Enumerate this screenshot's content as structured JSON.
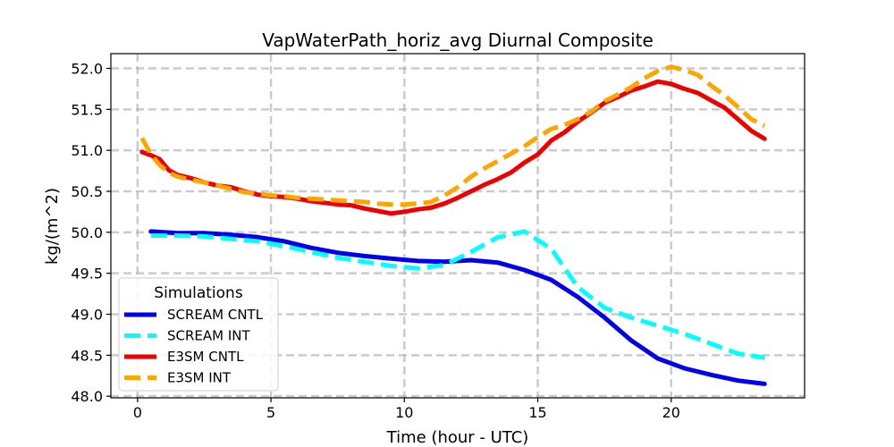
{
  "chart_data": {
    "type": "line",
    "title": "VapWaterPath_horiz_avg Diurnal Composite",
    "xlabel": "Time (hour - UTC)",
    "ylabel": "kg/(m^2)",
    "xlim": [
      -1,
      25
    ],
    "ylim": [
      47.98,
      52.18
    ],
    "xticks": [
      0,
      5,
      10,
      15,
      20
    ],
    "xtick_labels": [
      "0",
      "5",
      "10",
      "15",
      "20"
    ],
    "yticks": [
      48.0,
      48.5,
      49.0,
      49.5,
      50.0,
      50.5,
      51.0,
      51.5,
      52.0
    ],
    "ytick_labels": [
      "48.0",
      "48.5",
      "49.0",
      "49.5",
      "50.0",
      "50.5",
      "51.0",
      "51.5",
      "52.0"
    ],
    "grid": true,
    "legend": {
      "title": "Simulations",
      "position": "lower-left"
    },
    "series": [
      {
        "name": "SCREAM CNTL",
        "color": "#0000ee",
        "style": "solid",
        "x": [
          0.5,
          1.5,
          2.5,
          3.5,
          4.5,
          5.5,
          6.5,
          7.5,
          8.5,
          9.5,
          10.5,
          11.5,
          12.5,
          13.5,
          14.5,
          15.5,
          16.5,
          17.5,
          18.5,
          19.5,
          20.5,
          21.5,
          22.5,
          23.5
        ],
        "values": [
          50.01,
          49.99,
          49.99,
          49.97,
          49.94,
          49.89,
          49.81,
          49.75,
          49.71,
          49.68,
          49.65,
          49.64,
          49.66,
          49.63,
          49.54,
          49.42,
          49.21,
          48.96,
          48.68,
          48.46,
          48.34,
          48.26,
          48.19,
          48.15
        ]
      },
      {
        "name": "SCREAM INT",
        "color": "#00ffff",
        "style": "dashed",
        "x": [
          0.5,
          1.5,
          2.5,
          3.5,
          4.5,
          5.5,
          6.5,
          7.5,
          8.5,
          9.5,
          10.5,
          11.5,
          12.5,
          13.5,
          14.5,
          15.5,
          16.5,
          17.5,
          18.5,
          19.5,
          20.5,
          21.5,
          22.5,
          23.5
        ],
        "values": [
          49.96,
          49.96,
          49.95,
          49.92,
          49.89,
          49.83,
          49.76,
          49.69,
          49.64,
          49.59,
          49.56,
          49.6,
          49.76,
          49.94,
          50.01,
          49.8,
          49.33,
          49.08,
          48.96,
          48.86,
          48.76,
          48.64,
          48.52,
          48.47
        ]
      },
      {
        "name": "E3SM CNTL",
        "color": "#ee0000",
        "style": "solid",
        "x": [
          0.167,
          0.5,
          0.833,
          1.167,
          1.5,
          2.0,
          2.5,
          3.0,
          3.5,
          4.0,
          4.5,
          5.0,
          5.5,
          6.0,
          6.5,
          7.0,
          7.5,
          8.0,
          8.5,
          9.0,
          9.5,
          10.0,
          10.5,
          11.0,
          11.5,
          12.0,
          12.5,
          13.0,
          13.5,
          14.0,
          14.5,
          15.0,
          15.5,
          16.0,
          16.5,
          17.0,
          17.5,
          18.0,
          18.5,
          19.0,
          19.5,
          20.0,
          20.5,
          21.0,
          21.5,
          22.0,
          22.5,
          23.0,
          23.5
        ],
        "values": [
          50.98,
          50.94,
          50.89,
          50.76,
          50.7,
          50.66,
          50.61,
          50.57,
          50.55,
          50.5,
          50.46,
          50.44,
          50.43,
          50.41,
          50.38,
          50.36,
          50.34,
          50.33,
          50.29,
          50.26,
          50.23,
          50.25,
          50.28,
          50.3,
          50.35,
          50.42,
          50.5,
          50.58,
          50.65,
          50.73,
          50.85,
          50.95,
          51.12,
          51.22,
          51.35,
          51.46,
          51.58,
          51.65,
          51.73,
          51.78,
          51.84,
          51.81,
          51.75,
          51.7,
          51.61,
          51.52,
          51.38,
          51.24,
          51.14
        ]
      },
      {
        "name": "E3SM INT",
        "color": "#ffa500",
        "style": "dashed",
        "x": [
          0.167,
          0.5,
          0.833,
          1.167,
          1.5,
          2.0,
          2.5,
          3.0,
          3.5,
          4.0,
          4.5,
          5.0,
          5.5,
          6.0,
          6.5,
          7.0,
          7.5,
          8.0,
          8.5,
          9.0,
          9.5,
          10.0,
          10.5,
          11.0,
          11.5,
          12.0,
          12.5,
          13.0,
          13.5,
          14.0,
          14.5,
          15.0,
          15.5,
          16.0,
          16.5,
          17.0,
          17.5,
          18.0,
          18.5,
          19.0,
          19.5,
          20.0,
          20.5,
          21.0,
          21.5,
          22.0,
          22.5,
          23.0,
          23.5
        ],
        "values": [
          51.15,
          50.95,
          50.82,
          50.73,
          50.68,
          50.64,
          50.61,
          50.57,
          50.53,
          50.49,
          50.47,
          50.45,
          50.44,
          50.42,
          50.41,
          50.4,
          50.39,
          50.38,
          50.37,
          50.35,
          50.34,
          50.34,
          50.35,
          50.37,
          50.45,
          50.55,
          50.68,
          50.78,
          50.87,
          50.96,
          51.05,
          51.16,
          51.26,
          51.31,
          51.38,
          51.47,
          51.6,
          51.68,
          51.77,
          51.88,
          51.97,
          52.02,
          51.98,
          51.92,
          51.79,
          51.67,
          51.53,
          51.38,
          51.3
        ]
      }
    ]
  }
}
